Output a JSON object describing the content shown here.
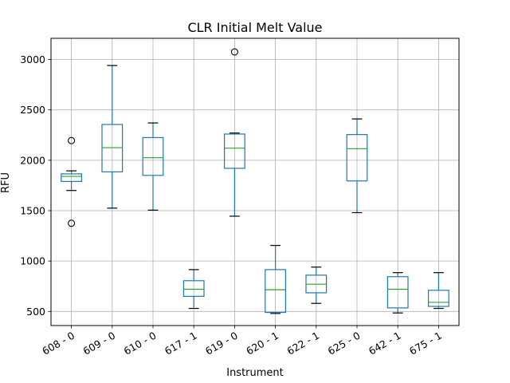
{
  "chart_data": {
    "type": "box",
    "title": "CLR Initial Melt Value",
    "xlabel": "Instrument",
    "ylabel": "RFU",
    "ylim": [
      360,
      3210
    ],
    "yticks": [
      500,
      1000,
      1500,
      2000,
      2500,
      3000
    ],
    "grid": true,
    "categories": [
      "608 - 0",
      "609 - 0",
      "610 - 0",
      "617 - 1",
      "619 - 0",
      "620 - 1",
      "622 - 1",
      "625 - 0",
      "642 - 1",
      "675 - 1"
    ],
    "boxes": [
      {
        "whisker_low": 1700,
        "q1": 1790,
        "median": 1840,
        "q3": 1865,
        "whisker_high": 1895,
        "outliers": [
          2195,
          1375
        ]
      },
      {
        "whisker_low": 1525,
        "q1": 1885,
        "median": 2125,
        "q3": 2355,
        "whisker_high": 2940,
        "outliers": []
      },
      {
        "whisker_low": 1505,
        "q1": 1850,
        "median": 2025,
        "q3": 2225,
        "whisker_high": 2370,
        "outliers": []
      },
      {
        "whisker_low": 530,
        "q1": 650,
        "median": 720,
        "q3": 805,
        "whisker_high": 915,
        "outliers": []
      },
      {
        "whisker_low": 1445,
        "q1": 1920,
        "median": 2120,
        "q3": 2260,
        "whisker_high": 2270,
        "outliers": [
          3075
        ]
      },
      {
        "whisker_low": 480,
        "q1": 490,
        "median": 715,
        "q3": 915,
        "whisker_high": 1155,
        "outliers": []
      },
      {
        "whisker_low": 580,
        "q1": 685,
        "median": 770,
        "q3": 860,
        "whisker_high": 940,
        "outliers": []
      },
      {
        "whisker_low": 1480,
        "q1": 1795,
        "median": 2115,
        "q3": 2255,
        "whisker_high": 2410,
        "outliers": []
      },
      {
        "whisker_low": 485,
        "q1": 535,
        "median": 720,
        "q3": 845,
        "whisker_high": 885,
        "outliers": []
      },
      {
        "whisker_low": 530,
        "q1": 550,
        "median": 590,
        "q3": 710,
        "whisker_high": 885,
        "outliers": []
      }
    ],
    "colors": {
      "box": "#1f77b4",
      "median": "#2ca02c",
      "whisker_cap": "#000000",
      "outlier": "#000000",
      "grid": "#b0b0b0"
    }
  }
}
